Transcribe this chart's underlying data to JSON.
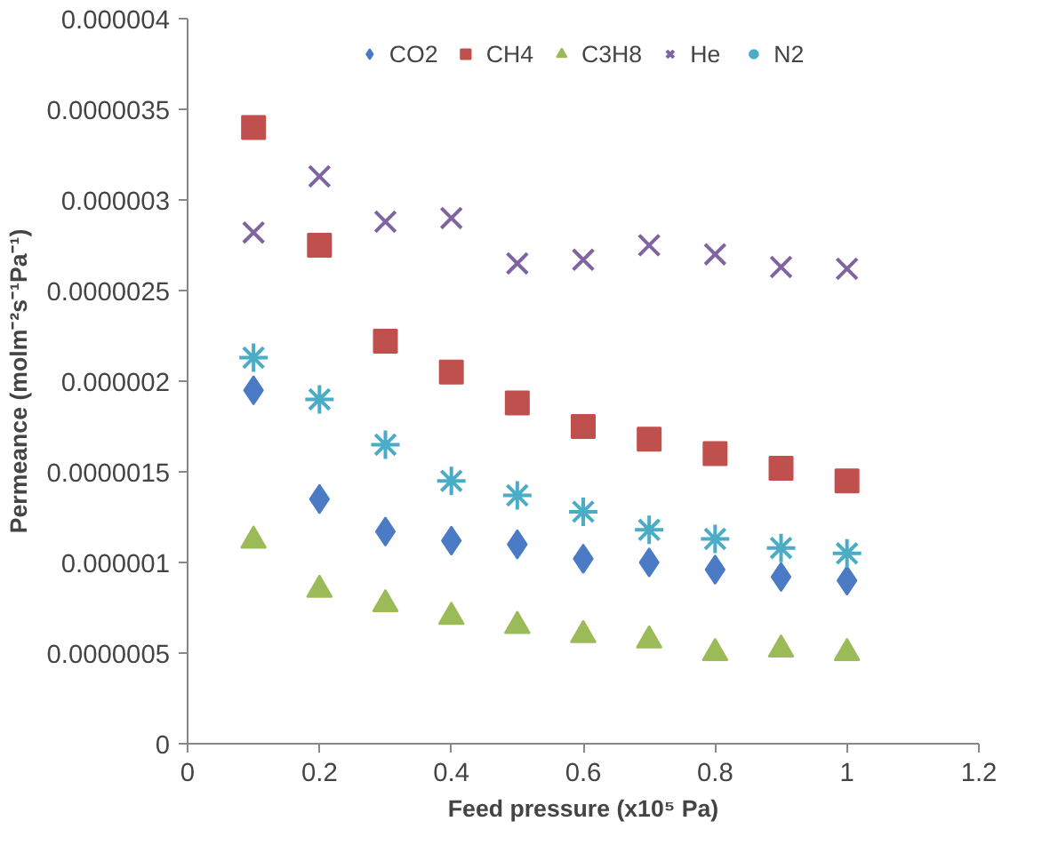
{
  "chart_data": {
    "type": "scatter",
    "xlabel": "Feed pressure (x10⁵ Pa)",
    "ylabel": "Permeance (molm⁻²s⁻¹Pa⁻¹)",
    "x": [
      0.1,
      0.2,
      0.3,
      0.4,
      0.5,
      0.6,
      0.7,
      0.8,
      0.9,
      1.0
    ],
    "xlim": [
      0,
      1.2
    ],
    "xticks": [
      0,
      0.2,
      0.4,
      0.6,
      0.8,
      1,
      1.2
    ],
    "ylim": [
      0,
      4e-06
    ],
    "yticks": [
      {
        "value": 0,
        "label": "0"
      },
      {
        "value": 5e-07,
        "label": "0.0000005"
      },
      {
        "value": 1e-06,
        "label": "0.000001"
      },
      {
        "value": 1.5e-06,
        "label": "0.0000015"
      },
      {
        "value": 2e-06,
        "label": "0.000002"
      },
      {
        "value": 2.5e-06,
        "label": "0.0000025"
      },
      {
        "value": 3e-06,
        "label": "0.000003"
      },
      {
        "value": 3.5e-06,
        "label": "0.0000035"
      },
      {
        "value": 4e-06,
        "label": "0.000004"
      }
    ],
    "grid": false,
    "legend": "top",
    "series": [
      {
        "name": "CO2",
        "color": "#4a7bc4",
        "marker": "diamond",
        "values": [
          1.95e-06,
          1.35e-06,
          1.17e-06,
          1.12e-06,
          1.1e-06,
          1.02e-06,
          1e-06,
          9.6e-07,
          9.2e-07,
          9e-07
        ]
      },
      {
        "name": "CH4",
        "color": "#c0504d",
        "marker": "square",
        "values": [
          3.4e-06,
          2.75e-06,
          2.22e-06,
          2.05e-06,
          1.88e-06,
          1.75e-06,
          1.68e-06,
          1.6e-06,
          1.52e-06,
          1.45e-06
        ]
      },
      {
        "name": "C3H8",
        "color": "#9bbb59",
        "marker": "triangle",
        "values": [
          1.12e-06,
          8.5e-07,
          7.7e-07,
          7e-07,
          6.5e-07,
          6e-07,
          5.7e-07,
          5e-07,
          5.2e-07,
          5e-07
        ]
      },
      {
        "name": "He",
        "color": "#8064a2",
        "marker": "x",
        "values": [
          2.82e-06,
          3.13e-06,
          2.88e-06,
          2.9e-06,
          2.65e-06,
          2.67e-06,
          2.75e-06,
          2.7e-06,
          2.63e-06,
          2.62e-06
        ]
      },
      {
        "name": "N2",
        "color": "#4bacc6",
        "marker": "cross",
        "values": [
          2.13e-06,
          1.9e-06,
          1.65e-06,
          1.45e-06,
          1.37e-06,
          1.28e-06,
          1.18e-06,
          1.13e-06,
          1.08e-06,
          1.05e-06
        ]
      }
    ]
  }
}
